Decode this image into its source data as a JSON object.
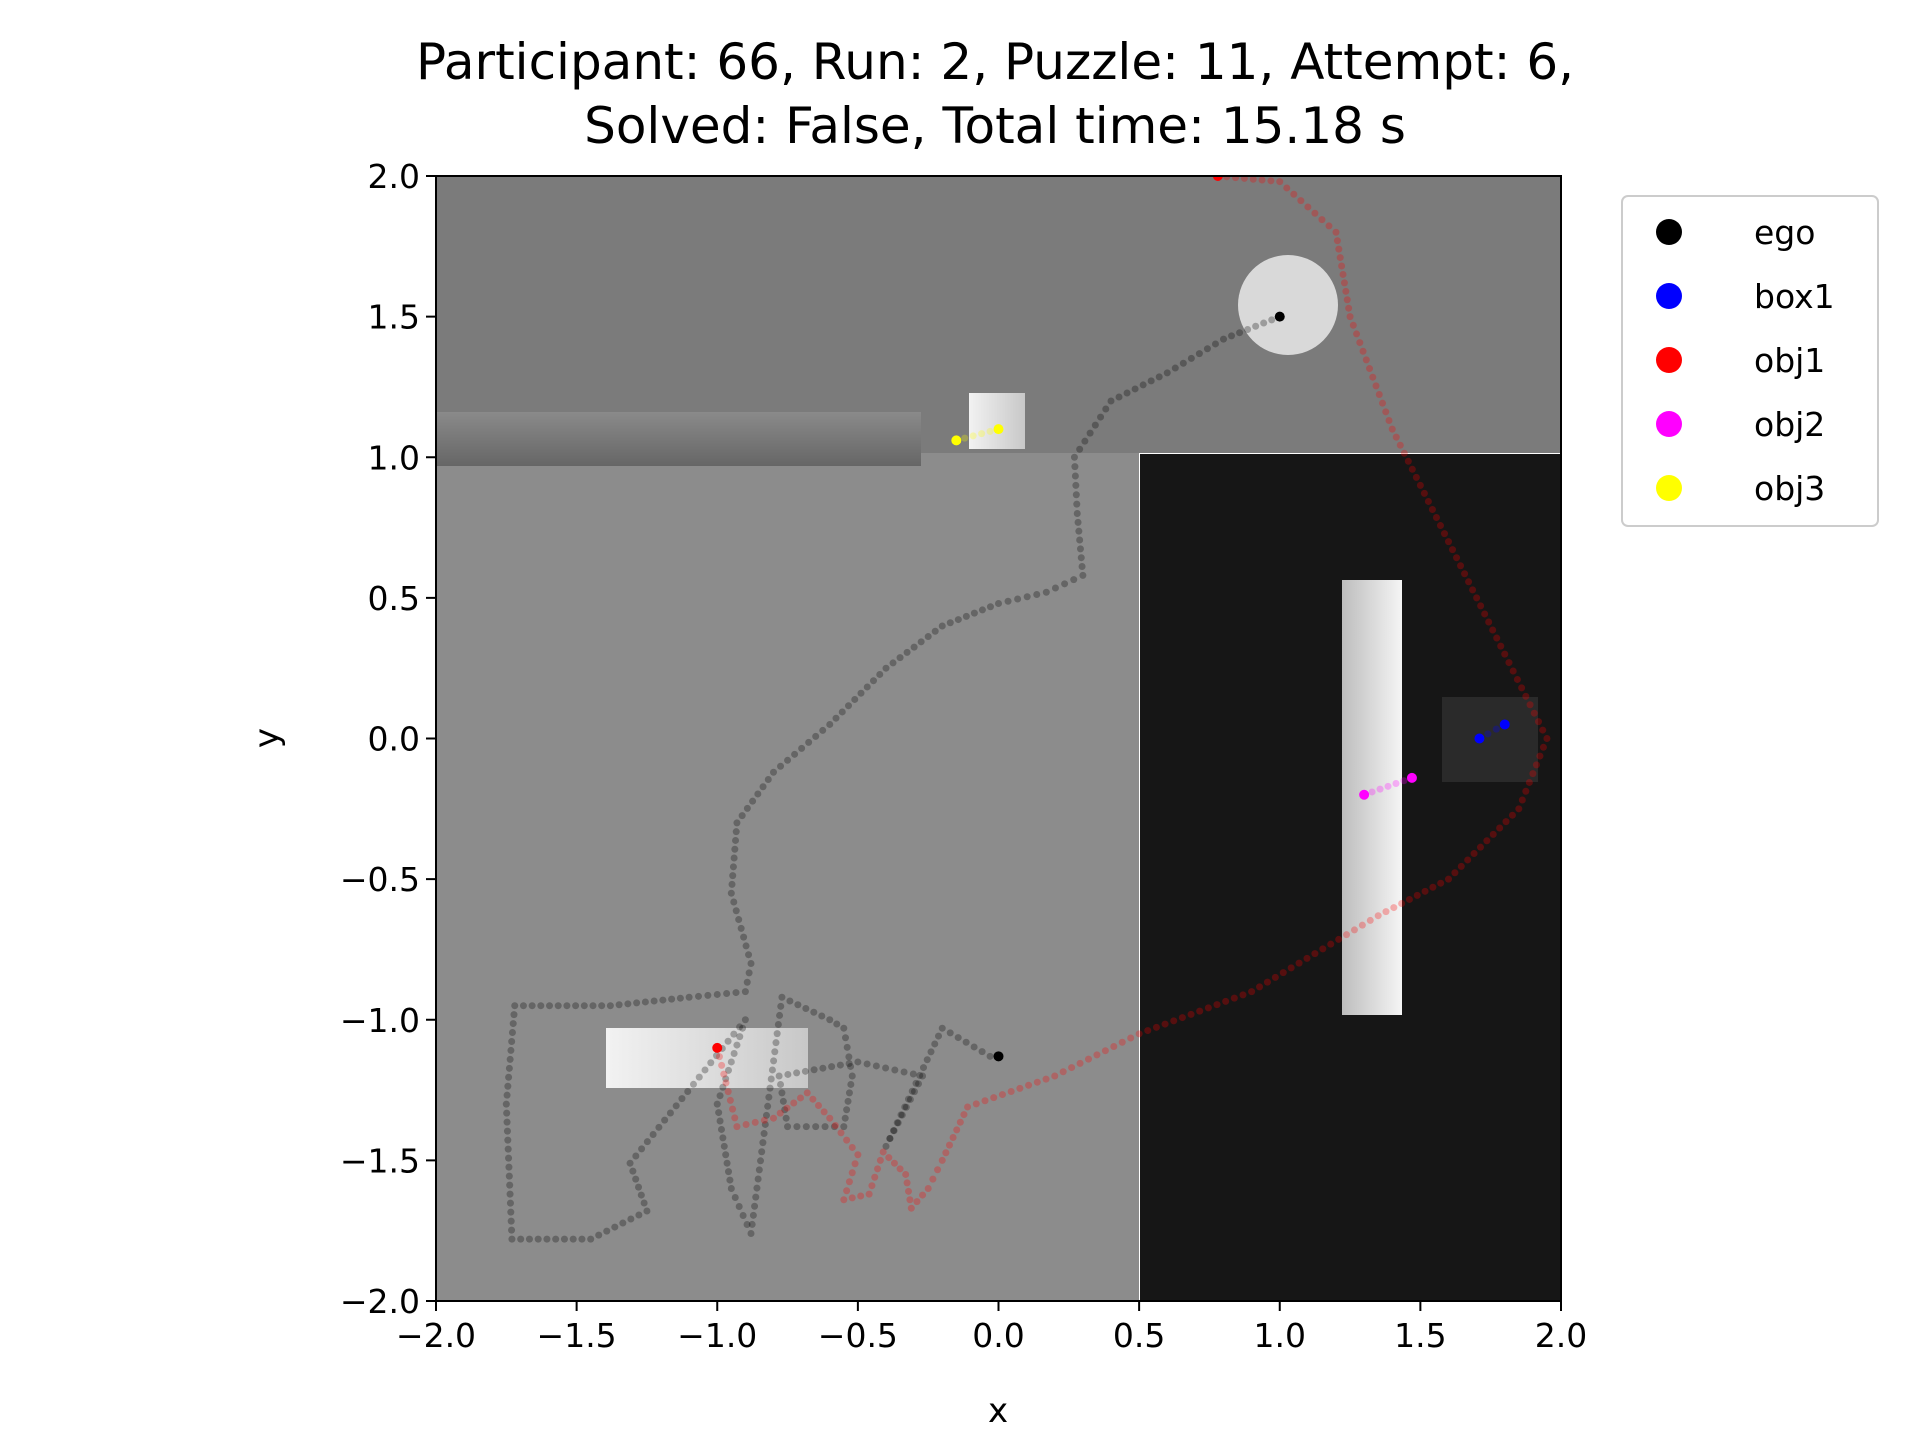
{
  "chart_data": {
    "type": "scatter",
    "title_line1": "Participant: 66, Run: 2, Puzzle: 11, Attempt: 6,",
    "title_line2": "Solved: False, Total time: 15.18 s",
    "xlabel": "x",
    "ylabel": "y",
    "xlim": [
      -2.0,
      2.0
    ],
    "ylim": [
      -2.0,
      2.0
    ],
    "xticks": [
      "−2.0",
      "−1.5",
      "−1.0",
      "−0.5",
      "0.0",
      "0.5",
      "1.0",
      "1.5",
      "2.0"
    ],
    "yticks": [
      "2.0",
      "1.5",
      "1.0",
      "0.5",
      "0.0",
      "−0.5",
      "−1.0",
      "−1.5",
      "−2.0"
    ],
    "grid": false,
    "legend_position": "outside-top-right",
    "legend": [
      {
        "name": "ego",
        "color": "#000000"
      },
      {
        "name": "box1",
        "color": "#0000ff"
      },
      {
        "name": "obj1",
        "color": "#ff0000"
      },
      {
        "name": "obj2",
        "color": "#ff00ff"
      },
      {
        "name": "obj3",
        "color": "#ffff00"
      }
    ],
    "series": [
      {
        "name": "ego",
        "color": "#000000",
        "points": [
          [
            1.0,
            1.5
          ],
          [
            0.8,
            1.42
          ],
          [
            0.6,
            1.3
          ],
          [
            0.4,
            1.2
          ],
          [
            0.27,
            1.0
          ],
          [
            0.28,
            0.8
          ],
          [
            0.3,
            0.58
          ],
          [
            0.17,
            0.52
          ],
          [
            0.0,
            0.48
          ],
          [
            -0.2,
            0.4
          ],
          [
            -0.4,
            0.25
          ],
          [
            -0.6,
            0.05
          ],
          [
            -0.8,
            -0.12
          ],
          [
            -0.93,
            -0.3
          ],
          [
            -0.95,
            -0.55
          ],
          [
            -0.88,
            -0.8
          ],
          [
            -0.9,
            -0.9
          ],
          [
            -1.1,
            -0.92
          ],
          [
            -1.38,
            -0.95
          ],
          [
            -1.72,
            -0.95
          ],
          [
            -1.75,
            -1.3
          ],
          [
            -1.73,
            -1.78
          ],
          [
            -1.45,
            -1.78
          ],
          [
            -1.25,
            -1.68
          ],
          [
            -1.31,
            -1.51
          ],
          [
            -0.9,
            -1.0
          ],
          [
            -1.0,
            -1.3
          ],
          [
            -0.95,
            -1.6
          ],
          [
            -0.88,
            -1.76
          ],
          [
            -0.77,
            -0.92
          ],
          [
            -0.6,
            -1.0
          ],
          [
            -0.55,
            -1.03
          ],
          [
            -0.52,
            -1.2
          ],
          [
            -0.55,
            -1.38
          ],
          [
            -0.75,
            -1.38
          ],
          [
            -0.78,
            -1.2
          ],
          [
            -0.5,
            -1.15
          ],
          [
            -0.27,
            -1.2
          ],
          [
            -0.4,
            -1.45
          ],
          [
            -0.2,
            -1.03
          ],
          [
            -0.03,
            -1.13
          ],
          [
            0.0,
            -1.13
          ]
        ]
      },
      {
        "name": "obj1",
        "color": "#ff0000",
        "points": [
          [
            -1.0,
            -1.1
          ],
          [
            -0.93,
            -1.38
          ],
          [
            -0.8,
            -1.35
          ],
          [
            -0.68,
            -1.26
          ],
          [
            -0.6,
            -1.35
          ],
          [
            -0.5,
            -1.48
          ],
          [
            -0.55,
            -1.64
          ],
          [
            -0.46,
            -1.62
          ],
          [
            -0.41,
            -1.47
          ],
          [
            -0.33,
            -1.55
          ],
          [
            -0.31,
            -1.67
          ],
          [
            -0.25,
            -1.6
          ],
          [
            -0.2,
            -1.5
          ],
          [
            -0.11,
            -1.31
          ],
          [
            0.2,
            -1.2
          ],
          [
            0.5,
            -1.05
          ],
          [
            0.9,
            -0.9
          ],
          [
            1.35,
            -0.63
          ],
          [
            1.6,
            -0.5
          ],
          [
            1.85,
            -0.25
          ],
          [
            1.95,
            0.0
          ],
          [
            1.8,
            0.3
          ],
          [
            1.6,
            0.7
          ],
          [
            1.4,
            1.1
          ],
          [
            1.25,
            1.5
          ],
          [
            1.2,
            1.8
          ],
          [
            1.0,
            1.98
          ],
          [
            0.78,
            2.0
          ]
        ]
      },
      {
        "name": "obj2",
        "color": "#ff00ff",
        "points": [
          [
            1.3,
            -0.2
          ],
          [
            1.47,
            -0.14
          ]
        ]
      },
      {
        "name": "box1",
        "color": "#0000ff",
        "points": [
          [
            1.71,
            0.0
          ],
          [
            1.8,
            0.05
          ]
        ]
      },
      {
        "name": "obj3",
        "color": "#ffff00",
        "points": [
          [
            -0.15,
            1.06
          ],
          [
            0.0,
            1.1
          ]
        ]
      }
    ]
  }
}
